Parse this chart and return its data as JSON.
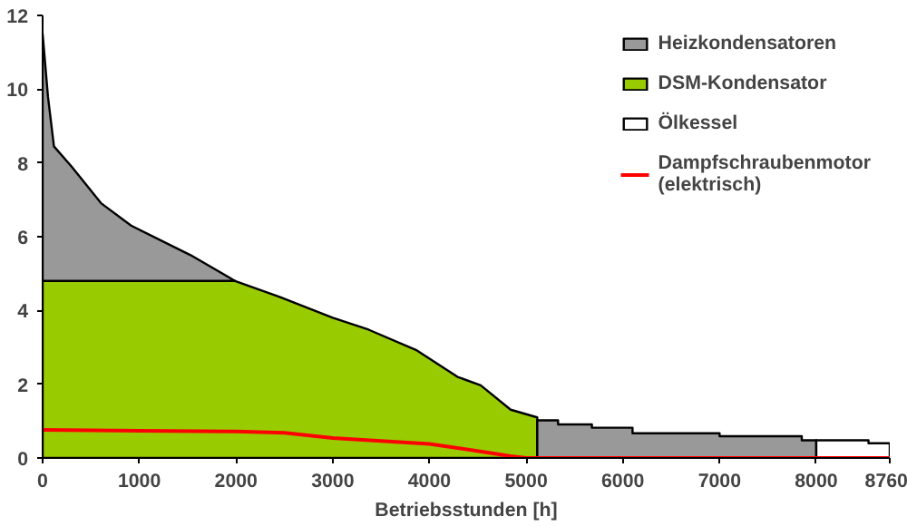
{
  "chart_data": {
    "type": "area",
    "stacked": true,
    "xlabel": "Betriebsstunden [h]",
    "x": [
      0,
      55,
      117,
      300,
      608,
      915,
      1530,
      1990,
      2450,
      3000,
      3370,
      3860,
      4290,
      4530,
      4840,
      5115,
      5115,
      5330,
      5330,
      5680,
      5680,
      6100,
      6100,
      7000,
      7000,
      7850,
      7850,
      8000,
      8000,
      8540,
      8540,
      8760
    ],
    "series": [
      {
        "name": "DSM-Kondensator",
        "color": "#99cc00",
        "values": [
          4.8,
          4.8,
          4.8,
          4.8,
          4.8,
          4.8,
          4.8,
          4.8,
          4.37,
          3.8,
          3.48,
          2.93,
          2.2,
          1.97,
          1.31,
          1.1,
          null,
          null,
          null,
          null,
          null,
          null,
          null,
          null,
          null,
          null,
          null,
          null,
          null,
          null,
          null,
          null
        ]
      },
      {
        "name": "Heizkondensatoren",
        "color": "#999999",
        "values": [
          6.7,
          5.0,
          3.65,
          3.1,
          2.1,
          1.5,
          0.7,
          0,
          null,
          null,
          null,
          null,
          null,
          null,
          null,
          null,
          1.02,
          1.02,
          0.91,
          0.91,
          0.82,
          0.82,
          0.67,
          0.67,
          0.59,
          0.59,
          0.48,
          0.48,
          null,
          null,
          null,
          null
        ]
      },
      {
        "name": "Ölkessel",
        "color": "#ffffff",
        "values": [
          null,
          null,
          null,
          null,
          null,
          null,
          null,
          null,
          null,
          null,
          null,
          null,
          null,
          null,
          null,
          null,
          null,
          null,
          null,
          null,
          null,
          null,
          null,
          null,
          null,
          null,
          null,
          null,
          0.48,
          0.48,
          0.4,
          0.4
        ]
      },
      {
        "name": "Dampfschraubenmotor\n(elektrisch)",
        "type": "line",
        "color": "#ff0000",
        "x": [
          0,
          1000,
          2000,
          2500,
          3000,
          3500,
          4000,
          4290,
          4600,
          4840,
          5000,
          8760
        ],
        "values": [
          0.76,
          0.74,
          0.72,
          0.68,
          0.54,
          0.46,
          0.38,
          0.27,
          0.15,
          0.05,
          0,
          0
        ]
      }
    ],
    "xlim": [
      0,
      8760
    ],
    "xticks": [
      0,
      1000,
      2000,
      3000,
      4000,
      5000,
      6000,
      7000,
      8000,
      8760
    ],
    "ylim": [
      0,
      12
    ],
    "yticks": [
      0,
      2,
      4,
      6,
      8,
      10,
      12
    ],
    "legend": "top right"
  }
}
